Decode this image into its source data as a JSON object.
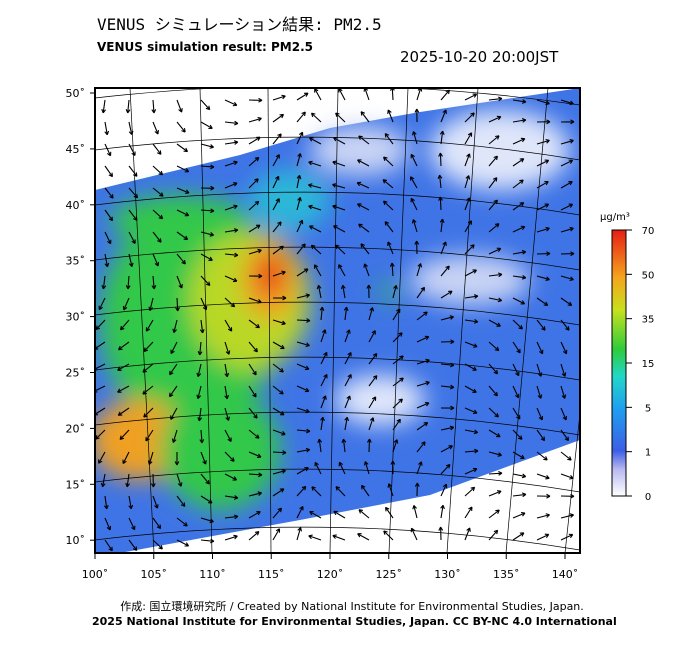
{
  "header": {
    "title": "VENUS シミュレーション結果: PM2.5",
    "subtitle": "VENUS simulation result: PM2.5",
    "datetime": "2025-10-20 20:00JST"
  },
  "map": {
    "lat_labels": [
      "50˚",
      "45˚",
      "40˚",
      "35˚",
      "30˚",
      "25˚",
      "20˚",
      "15˚",
      "10˚"
    ],
    "lon_labels": [
      "100˚",
      "105˚",
      "110˚",
      "115˚",
      "120˚",
      "125˚",
      "130˚",
      "135˚",
      "140˚"
    ]
  },
  "colorbar": {
    "unit": "µg/m³",
    "labels": [
      "70",
      "50",
      "35",
      "15",
      "5",
      "1",
      "0"
    ]
  },
  "footer": {
    "credit": "作成: 国立環境研究所 / Created by National Institute for Environmental Studies, Japan.",
    "license": "2025 National Institute for Environmental Studies, Japan. CC BY-NC 4.0 International"
  }
}
